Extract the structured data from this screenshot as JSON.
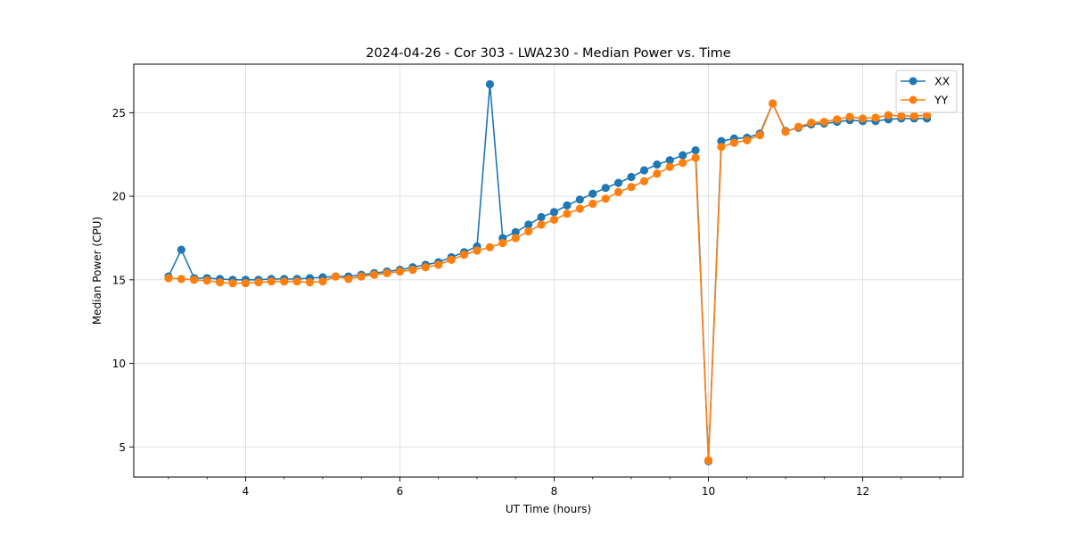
{
  "chart_data": {
    "type": "line",
    "title": "2024-04-26 - Cor 303 - LWA230 - Median Power vs. Time",
    "xlabel": "UT Time (hours)",
    "ylabel": "Median Power (CPU)",
    "xlim": [
      2.55,
      13.3
    ],
    "ylim": [
      3.2,
      27.9
    ],
    "xticks": [
      4,
      6,
      8,
      10,
      12
    ],
    "xtick_labels": [
      "4",
      "6",
      "8",
      "10",
      "12"
    ],
    "yticks": [
      5,
      10,
      15,
      20,
      25
    ],
    "ytick_labels": [
      "5",
      "10",
      "15",
      "20",
      "25"
    ],
    "grid": true,
    "legend_position": "top-right",
    "x": [
      3.0,
      3.167,
      3.333,
      3.5,
      3.667,
      3.833,
      4.0,
      4.167,
      4.333,
      4.5,
      4.667,
      4.833,
      5.0,
      5.167,
      5.333,
      5.5,
      5.667,
      5.833,
      6.0,
      6.167,
      6.333,
      6.5,
      6.667,
      6.833,
      7.0,
      7.167,
      7.333,
      7.5,
      7.667,
      7.833,
      8.0,
      8.167,
      8.333,
      8.5,
      8.667,
      8.833,
      9.0,
      9.167,
      9.333,
      9.5,
      9.667,
      9.833,
      10.0,
      10.167,
      10.333,
      10.5,
      10.667,
      10.833,
      11.0,
      11.167,
      11.333,
      11.5,
      11.667,
      11.833,
      12.0,
      12.167,
      12.333,
      12.5,
      12.667,
      12.833
    ],
    "series": [
      {
        "name": "XX",
        "color": "#1f77b4",
        "values": [
          15.2,
          16.8,
          15.1,
          15.1,
          15.05,
          15.0,
          15.0,
          15.0,
          15.05,
          15.05,
          15.05,
          15.1,
          15.15,
          15.2,
          15.2,
          15.3,
          15.4,
          15.5,
          15.6,
          15.75,
          15.9,
          16.05,
          16.35,
          16.65,
          17.0,
          26.7,
          17.5,
          17.85,
          18.3,
          18.75,
          19.05,
          19.45,
          19.8,
          20.15,
          20.5,
          20.8,
          21.15,
          21.55,
          21.9,
          22.15,
          22.45,
          22.75,
          4.15,
          23.3,
          23.45,
          23.5,
          23.75,
          25.55,
          23.9,
          24.1,
          24.3,
          24.35,
          24.45,
          24.55,
          24.5,
          24.5,
          24.6,
          24.65,
          24.65,
          24.65
        ]
      },
      {
        "name": "YY",
        "color": "#ff7f0e",
        "values": [
          15.1,
          15.05,
          15.0,
          14.95,
          14.85,
          14.8,
          14.8,
          14.85,
          14.9,
          14.9,
          14.9,
          14.85,
          14.9,
          15.2,
          15.05,
          15.2,
          15.3,
          15.4,
          15.5,
          15.6,
          15.75,
          15.9,
          16.2,
          16.5,
          16.75,
          16.95,
          17.2,
          17.5,
          17.9,
          18.3,
          18.6,
          18.95,
          19.25,
          19.55,
          19.85,
          20.25,
          20.55,
          20.9,
          21.35,
          21.75,
          22.0,
          22.3,
          4.2,
          22.95,
          23.2,
          23.35,
          23.65,
          25.55,
          23.85,
          24.15,
          24.4,
          24.45,
          24.6,
          24.75,
          24.65,
          24.7,
          24.85,
          24.8,
          24.8,
          24.85
        ]
      }
    ]
  }
}
